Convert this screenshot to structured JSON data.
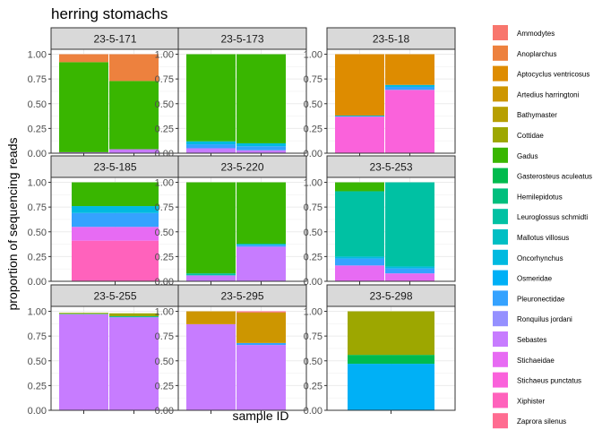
{
  "chart_data": {
    "type": "bar",
    "title": "herring stomachs",
    "xlabel": "sample ID",
    "ylabel": "proportion of sequencing reads",
    "ylim": [
      0,
      1.05
    ],
    "yticks": [
      "0.00",
      "0.25",
      "0.50",
      "0.75",
      "1.00"
    ],
    "grid": true,
    "legend_position": "right",
    "legend": [
      {
        "name": "Ammodytes",
        "color": "#F8766D"
      },
      {
        "name": "Anoplarchus",
        "color": "#ED813E"
      },
      {
        "name": "Aptocyclus ventricosus",
        "color": "#DE8C00"
      },
      {
        "name": "Artedius harringtoni",
        "color": "#CD9600"
      },
      {
        "name": "Bathymaster",
        "color": "#B79F00"
      },
      {
        "name": "Cottidae",
        "color": "#9DA700"
      },
      {
        "name": "Gadus",
        "color": "#39B600"
      },
      {
        "name": "Gasterosteus aculeatus",
        "color": "#00BB4E"
      },
      {
        "name": "Hemilepidotus",
        "color": "#00BF7D"
      },
      {
        "name": "Leuroglossus schmidti",
        "color": "#00C1A3"
      },
      {
        "name": "Mallotus villosus",
        "color": "#00BFC4"
      },
      {
        "name": "Oncorhynchus",
        "color": "#00BAE0"
      },
      {
        "name": "Osmeridae",
        "color": "#00B0F6"
      },
      {
        "name": "Pleuronectidae",
        "color": "#35A2FF"
      },
      {
        "name": "Ronquilus jordani",
        "color": "#9590FF"
      },
      {
        "name": "Sebastes",
        "color": "#C77CFF"
      },
      {
        "name": "Stichaeidae",
        "color": "#E76BF3"
      },
      {
        "name": "Stichaeus punctatus",
        "color": "#FA62DB"
      },
      {
        "name": "Xiphister",
        "color": "#FF62BC"
      },
      {
        "name": "Zaprora silenus",
        "color": "#FF6C91"
      }
    ],
    "facets": [
      {
        "id": "23-5-171",
        "bars": [
          [
            {
              "taxon": "Sebastes",
              "value": 0.01
            },
            {
              "taxon": "Gadus",
              "value": 0.91
            },
            {
              "taxon": "Anoplarchus",
              "value": 0.08
            }
          ],
          [
            {
              "taxon": "Sebastes",
              "value": 0.04
            },
            {
              "taxon": "Gadus",
              "value": 0.69
            },
            {
              "taxon": "Anoplarchus",
              "value": 0.27
            }
          ]
        ]
      },
      {
        "id": "23-5-173",
        "bars": [
          [
            {
              "taxon": "Sebastes",
              "value": 0.05
            },
            {
              "taxon": "Pleuronectidae",
              "value": 0.04
            },
            {
              "taxon": "Oncorhynchus",
              "value": 0.03
            },
            {
              "taxon": "Gadus",
              "value": 0.88
            }
          ],
          [
            {
              "taxon": "Sebastes",
              "value": 0.03
            },
            {
              "taxon": "Pleuronectidae",
              "value": 0.04
            },
            {
              "taxon": "Oncorhynchus",
              "value": 0.03
            },
            {
              "taxon": "Gadus",
              "value": 0.9
            }
          ]
        ]
      },
      {
        "id": "23-5-18",
        "bars": [
          [
            {
              "taxon": "Stichaeus punctatus",
              "value": 0.37
            },
            {
              "taxon": "Oncorhynchus",
              "value": 0.01
            },
            {
              "taxon": "Aptocyclus ventricosus",
              "value": 0.62
            }
          ],
          [
            {
              "taxon": "Stichaeus punctatus",
              "value": 0.64
            },
            {
              "taxon": "Pleuronectidae",
              "value": 0.03
            },
            {
              "taxon": "Oncorhynchus",
              "value": 0.02
            },
            {
              "taxon": "Aptocyclus ventricosus",
              "value": 0.31
            }
          ]
        ]
      },
      {
        "id": "23-5-185",
        "bars": [
          [
            {
              "taxon": "Xiphister",
              "value": 0.41
            },
            {
              "taxon": "Stichaeidae",
              "value": 0.14
            },
            {
              "taxon": "Pleuronectidae",
              "value": 0.14
            },
            {
              "taxon": "Oncorhynchus",
              "value": 0.07
            },
            {
              "taxon": "Gadus",
              "value": 0.24
            }
          ]
        ]
      },
      {
        "id": "23-5-220",
        "bars": [
          [
            {
              "taxon": "Sebastes",
              "value": 0.06
            },
            {
              "taxon": "Leuroglossus schmidti",
              "value": 0.02
            },
            {
              "taxon": "Gadus",
              "value": 0.92
            }
          ],
          [
            {
              "taxon": "Sebastes",
              "value": 0.35
            },
            {
              "taxon": "Pleuronectidae",
              "value": 0.02
            },
            {
              "taxon": "Leuroglossus schmidti",
              "value": 0.01
            },
            {
              "taxon": "Gadus",
              "value": 0.62
            }
          ]
        ]
      },
      {
        "id": "23-5-253",
        "bars": [
          [
            {
              "taxon": "Stichaeidae",
              "value": 0.16
            },
            {
              "taxon": "Pleuronectidae",
              "value": 0.07
            },
            {
              "taxon": "Oncorhynchus",
              "value": 0.02
            },
            {
              "taxon": "Leuroglossus schmidti",
              "value": 0.66
            },
            {
              "taxon": "Gadus",
              "value": 0.09
            }
          ],
          [
            {
              "taxon": "Stichaeidae",
              "value": 0.08
            },
            {
              "taxon": "Pleuronectidae",
              "value": 0.05
            },
            {
              "taxon": "Oncorhynchus",
              "value": 0.02
            },
            {
              "taxon": "Leuroglossus schmidti",
              "value": 0.85
            }
          ]
        ]
      },
      {
        "id": "23-5-255",
        "bars": [
          [
            {
              "taxon": "Sebastes",
              "value": 0.97
            },
            {
              "taxon": "Leuroglossus schmidti",
              "value": 0.005
            },
            {
              "taxon": "Cottidae",
              "value": 0.01
            }
          ],
          [
            {
              "taxon": "Sebastes",
              "value": 0.94
            },
            {
              "taxon": "Leuroglossus schmidti",
              "value": 0.01
            },
            {
              "taxon": "Cottidae",
              "value": 0.03
            }
          ]
        ]
      },
      {
        "id": "23-5-295",
        "bars": [
          [
            {
              "taxon": "Sebastes",
              "value": 0.87
            },
            {
              "taxon": "Artedius harringtoni",
              "value": 0.13
            }
          ],
          [
            {
              "taxon": "Sebastes",
              "value": 0.66
            },
            {
              "taxon": "Pleuronectidae",
              "value": 0.02
            },
            {
              "taxon": "Artedius harringtoni",
              "value": 0.31
            },
            {
              "taxon": "Zaprora silenus",
              "value": 0.01
            }
          ]
        ]
      },
      {
        "id": "23-5-298",
        "bars": [
          [
            {
              "taxon": "Osmeridae",
              "value": 0.47
            },
            {
              "taxon": "Gasterosteus aculeatus",
              "value": 0.09
            },
            {
              "taxon": "Cottidae",
              "value": 0.44
            }
          ]
        ]
      }
    ]
  }
}
